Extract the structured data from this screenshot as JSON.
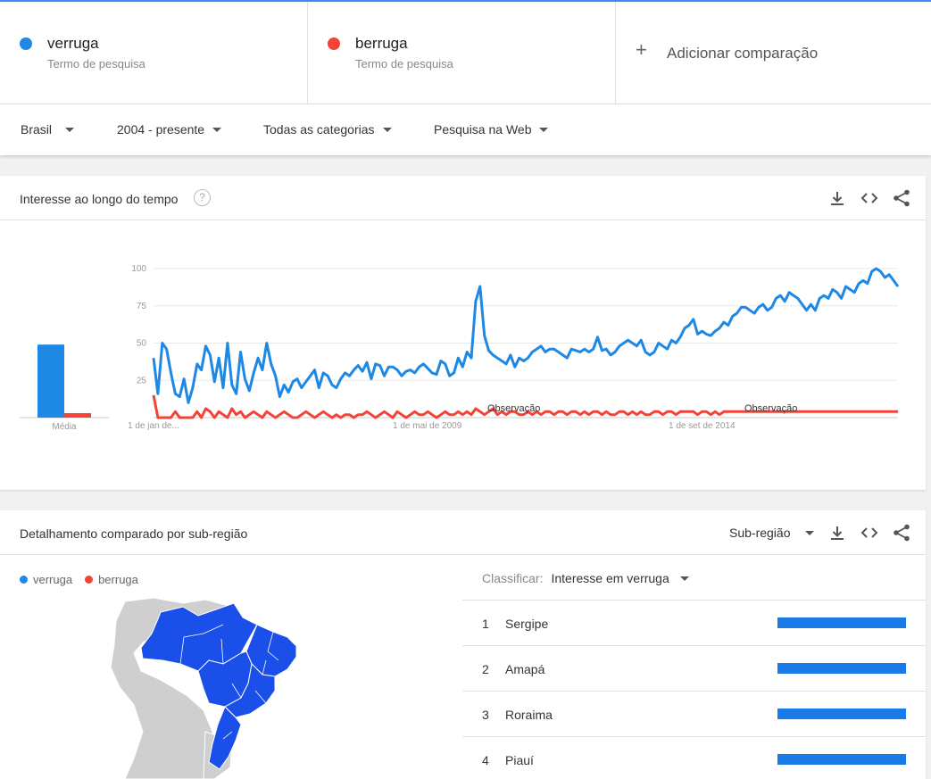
{
  "terms": [
    {
      "name": "verruga",
      "sub": "Termo de pesquisa",
      "color": "#1e88e5"
    },
    {
      "name": "berruga",
      "sub": "Termo de pesquisa",
      "color": "#f44336"
    }
  ],
  "add_comparison": "Adicionar comparação",
  "filters": {
    "region": "Brasil",
    "period": "2004 - presente",
    "category": "Todas as categorias",
    "search_type": "Pesquisa na Web"
  },
  "interest_card": {
    "title": "Interesse ao longo do tempo",
    "help": "?",
    "average_label": "Média"
  },
  "chart_data": {
    "type": "line",
    "y_ticks": [
      "100",
      "75",
      "50",
      "25"
    ],
    "x_ticks": [
      "1 de jan de...",
      "1 de mai de 2009",
      "1 de set de 2014"
    ],
    "ylim": [
      0,
      100
    ],
    "annotations": [
      "Observação",
      "Observação"
    ],
    "average": {
      "verruga": 49,
      "berruga": 3
    },
    "series": [
      {
        "name": "verruga",
        "color": "#1e88e5",
        "values": [
          40,
          16,
          50,
          46,
          30,
          16,
          14,
          26,
          10,
          20,
          36,
          32,
          48,
          42,
          24,
          40,
          20,
          50,
          22,
          16,
          44,
          26,
          18,
          30,
          40,
          32,
          50,
          36,
          28,
          14,
          22,
          17,
          24,
          26,
          20,
          24,
          28,
          32,
          20,
          30,
          28,
          22,
          20,
          26,
          30,
          28,
          32,
          35,
          31,
          37,
          26,
          36,
          35,
          28,
          34,
          34,
          32,
          28,
          31,
          32,
          30,
          34,
          36,
          33,
          30,
          29,
          38,
          36,
          28,
          30,
          40,
          34,
          44,
          40,
          78,
          88,
          55,
          45,
          42,
          40,
          38,
          36,
          42,
          34,
          40,
          38,
          40,
          44,
          46,
          48,
          44,
          46,
          46,
          44,
          42,
          40,
          46,
          45,
          44,
          46,
          44,
          46,
          54,
          45,
          46,
          42,
          44,
          48,
          50,
          52,
          50,
          48,
          52,
          44,
          42,
          44,
          50,
          48,
          46,
          52,
          50,
          54,
          60,
          62,
          66,
          56,
          58,
          56,
          55,
          58,
          60,
          64,
          62,
          68,
          70,
          74,
          74,
          72,
          70,
          74,
          76,
          72,
          74,
          80,
          82,
          78,
          84,
          82,
          80,
          76,
          72,
          76,
          72,
          80,
          82,
          80,
          86,
          84,
          80,
          88,
          86,
          84,
          90,
          92,
          90,
          98,
          100,
          98,
          94,
          96,
          92,
          88
        ]
      },
      {
        "name": "berruga",
        "color": "#f44336",
        "values": [
          15,
          0,
          0,
          0,
          0,
          4,
          0,
          0,
          0,
          0,
          4,
          0,
          6,
          4,
          0,
          4,
          2,
          0,
          6,
          2,
          4,
          0,
          2,
          4,
          2,
          0,
          4,
          2,
          0,
          2,
          4,
          2,
          0,
          0,
          2,
          4,
          2,
          0,
          2,
          4,
          2,
          0,
          2,
          0,
          2,
          2,
          0,
          2,
          2,
          4,
          2,
          0,
          2,
          4,
          2,
          0,
          4,
          2,
          0,
          2,
          4,
          2,
          2,
          4,
          2,
          0,
          2,
          4,
          2,
          2,
          4,
          2,
          4,
          2,
          6,
          4,
          2,
          4,
          6,
          2,
          4,
          2,
          4,
          4,
          2,
          2,
          4,
          2,
          4,
          2,
          4,
          4,
          2,
          4,
          4,
          2,
          4,
          4,
          2,
          4,
          2,
          4,
          4,
          2,
          4,
          2,
          2,
          4,
          4,
          2,
          4,
          2,
          4,
          2,
          2,
          4,
          4,
          2,
          4,
          4,
          2,
          4,
          4,
          4,
          4,
          2,
          4,
          4,
          2,
          4,
          2,
          4,
          4,
          4,
          4,
          4,
          4,
          4,
          4,
          4,
          4,
          4,
          4,
          4,
          4,
          4,
          4,
          4,
          4,
          4,
          4,
          4,
          4,
          4,
          4,
          4,
          4,
          4,
          4,
          4,
          4,
          4,
          4,
          4,
          4,
          4,
          4,
          4,
          4,
          4,
          4,
          4
        ]
      }
    ]
  },
  "region_card": {
    "title": "Detalhamento comparado por sub-região",
    "resolution": "Sub-região",
    "legend": [
      "verruga",
      "berruga"
    ],
    "sort_label": "Classificar:",
    "sort_value": "Interesse em verruga",
    "rows": [
      {
        "rank": "1",
        "name": "Sergipe",
        "value": 100
      },
      {
        "rank": "2",
        "name": "Amapá",
        "value": 100
      },
      {
        "rank": "3",
        "name": "Roraima",
        "value": 100
      },
      {
        "rank": "4",
        "name": "Piauí",
        "value": 100
      }
    ]
  }
}
